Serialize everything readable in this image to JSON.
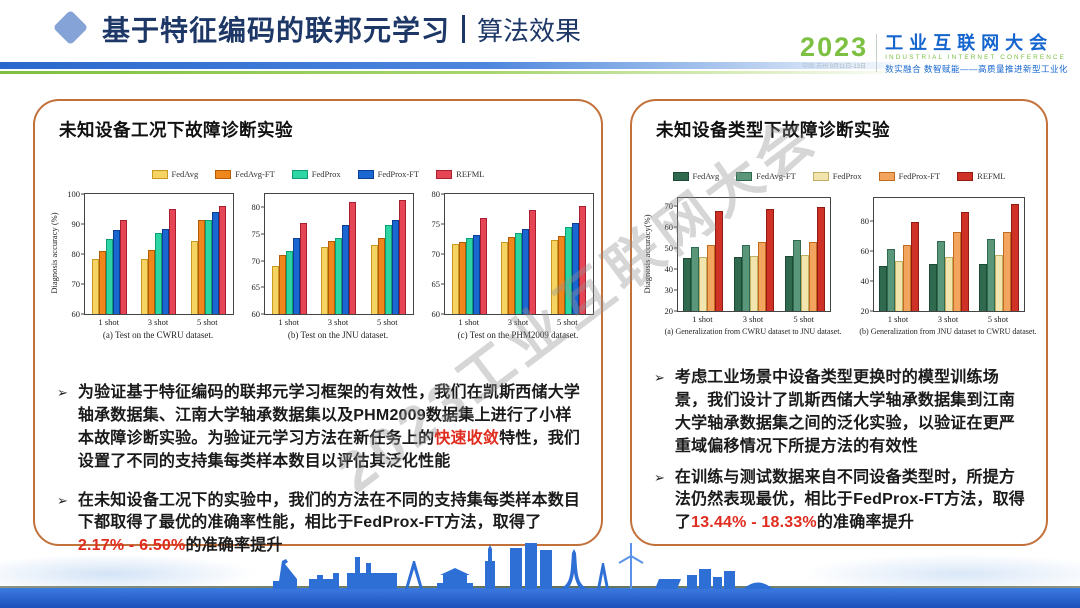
{
  "header": {
    "title": "基于特征编码的联邦元学习",
    "subtitle": "算法效果",
    "logo": {
      "year": "2023",
      "event_info": "中国·苏州 9月11日-13日",
      "name_cn": "工业互联网大会",
      "name_en": "INDUSTRIAL INTERNET CONFERENCE",
      "slogan": "数实融合 数智赋能——高质量推进新型工业化"
    }
  },
  "watermark": "2023工业互联网大会",
  "colors": {
    "title_navy": "#1d3767",
    "panel_border": "#c2713a",
    "highlight_red": "#e02c1e",
    "divider_blue": "#2a68cc",
    "divider_green": "#7fbf3f",
    "skyline_blue": "#2e6fd6"
  },
  "panels": {
    "left": {
      "title": "未知设备工况下故障诊断实验",
      "legend": [
        {
          "label": "FedAvg",
          "fill": "#f6d464",
          "border": "#c79a1d"
        },
        {
          "label": "FedAvg-FT",
          "fill": "#f0871d",
          "border": "#b35c08"
        },
        {
          "label": "FedProx",
          "fill": "#2cd5a4",
          "border": "#0f9e74"
        },
        {
          "label": "FedProx-FT",
          "fill": "#1a67d2",
          "border": "#0c3e93"
        },
        {
          "label": "REFML",
          "fill": "#e64556",
          "border": "#a81f30"
        }
      ],
      "bullets": [
        {
          "segments": [
            {
              "t": "为验证基于特征编码的联邦元学习框架的有效性，我们在凯斯西储大学轴承数据集、江南大学轴承数据集以及PHM2009数据集上进行了小样本故障诊断实验。为验证元学习方法在新任务上的",
              "red": false
            },
            {
              "t": "快速收敛",
              "red": true
            },
            {
              "t": "特性，我们设置了不同的支持集每类样本数目以评估其泛化性能",
              "red": false
            }
          ]
        },
        {
          "segments": [
            {
              "t": "在未知设备工况下的实验中，我们的方法在不同的支持集每类样本数目下都取得了最优的准确率性能，相比于FedProx-FT方法，取得了 ",
              "red": false
            },
            {
              "t": "2.17% - 6.50%",
              "red": true
            },
            {
              "t": "的准确率提升",
              "red": false
            }
          ]
        }
      ]
    },
    "right": {
      "title": "未知设备类型下故障诊断实验",
      "legend": [
        {
          "label": "FedAvg",
          "fill": "#2f6a4f",
          "border": "#1c4a34"
        },
        {
          "label": "FedAvg-FT",
          "fill": "#59967a",
          "border": "#2f6a4f"
        },
        {
          "label": "FedProx",
          "fill": "#f1e5ad",
          "border": "#bfae66"
        },
        {
          "label": "FedProx-FT",
          "fill": "#f3a45f",
          "border": "#c26a1d"
        },
        {
          "label": "REFML",
          "fill": "#cf3126",
          "border": "#8f1b13"
        }
      ],
      "bullets": [
        {
          "segments": [
            {
              "t": "考虑工业场景中设备类型更换时的模型训练场景，我们设计了凯斯西储大学轴承数据集到江南大学轴承数据集之间的泛化实验，以验证在更严重域偏移情况下所提方法的有效性",
              "red": false
            }
          ]
        },
        {
          "segments": [
            {
              "t": "在训练与测试数据来自不同设备类型时，所提方法仍然表现最优，相比于FedProx-FT方法，取得了",
              "red": false
            },
            {
              "t": "13.44% - 18.33%",
              "red": true
            },
            {
              "t": "的准确率提升",
              "red": false
            }
          ]
        }
      ]
    }
  },
  "chart_data": [
    {
      "id": "cwru",
      "type": "bar",
      "panel": "left",
      "title": "(a) Test on the CWRU dataset.",
      "ylabel": "Diagnosis accuracy (%)",
      "ylim": [
        60,
        100
      ],
      "yticks": [
        60,
        70,
        80,
        90,
        100
      ],
      "categories": [
        "1 shot",
        "3 shot",
        "5 shot"
      ],
      "series": [
        {
          "name": "FedAvg",
          "values": [
            78.5,
            78.5,
            84.5
          ]
        },
        {
          "name": "FedAvg-FT",
          "values": [
            81.0,
            81.5,
            91.5
          ]
        },
        {
          "name": "FedProx",
          "values": [
            85.0,
            87.0,
            91.5
          ]
        },
        {
          "name": "FedProx-FT",
          "values": [
            88.0,
            88.5,
            94.0
          ]
        },
        {
          "name": "REFML",
          "values": [
            91.5,
            95.0,
            96.0
          ]
        }
      ]
    },
    {
      "id": "jnu",
      "type": "bar",
      "panel": "left",
      "title": "(b) Test on the JNU dataset.",
      "ylabel": "",
      "ylim": [
        60,
        82.5
      ],
      "yticks": [
        60,
        65,
        70,
        75,
        80
      ],
      "categories": [
        "1 shot",
        "3 shot",
        "5 shot"
      ],
      "series": [
        {
          "name": "FedAvg",
          "values": [
            69.0,
            72.5,
            73.0
          ]
        },
        {
          "name": "FedAvg-FT",
          "values": [
            71.0,
            73.7,
            74.2
          ]
        },
        {
          "name": "FedProx",
          "values": [
            71.8,
            74.2,
            76.7
          ]
        },
        {
          "name": "FedProx-FT",
          "values": [
            74.2,
            76.7,
            77.7
          ]
        },
        {
          "name": "REFML",
          "values": [
            77.0,
            81.0,
            81.3
          ]
        }
      ]
    },
    {
      "id": "phm",
      "type": "bar",
      "panel": "left",
      "title": "(c) Test on the PHM2009 dataset.",
      "ylabel": "",
      "ylim": [
        60,
        80
      ],
      "yticks": [
        60,
        65,
        70,
        75,
        80
      ],
      "categories": [
        "1 shot",
        "3 shot",
        "5 shot"
      ],
      "series": [
        {
          "name": "FedAvg",
          "values": [
            71.7,
            72.0,
            72.3
          ]
        },
        {
          "name": "FedAvg-FT",
          "values": [
            72.0,
            72.9,
            73.0
          ]
        },
        {
          "name": "FedProx",
          "values": [
            72.6,
            73.5,
            74.5
          ]
        },
        {
          "name": "FedProx-FT",
          "values": [
            73.2,
            74.2,
            75.2
          ]
        },
        {
          "name": "REFML",
          "values": [
            76.0,
            77.4,
            78.0
          ]
        }
      ]
    },
    {
      "id": "gen-cwru-jnu",
      "type": "bar",
      "panel": "right",
      "title": "(a) Generalization from CWRU dataset to JNU dataset.",
      "ylabel": "Diagnosis accuracy(%)",
      "ylim": [
        20,
        74
      ],
      "yticks": [
        20,
        30,
        40,
        50,
        60,
        70
      ],
      "categories": [
        "1 shot",
        "3 shot",
        "5 shot"
      ],
      "series": [
        {
          "name": "FedAvg",
          "values": [
            45.5,
            46.0,
            46.5
          ]
        },
        {
          "name": "FedAvg-FT",
          "values": [
            50.5,
            51.5,
            54.0
          ]
        },
        {
          "name": "FedProx",
          "values": [
            46.0,
            46.5,
            47.0
          ]
        },
        {
          "name": "FedProx-FT",
          "values": [
            51.5,
            53.0,
            53.0
          ]
        },
        {
          "name": "REFML",
          "values": [
            68.0,
            69.0,
            69.5
          ]
        }
      ]
    },
    {
      "id": "gen-jnu-cwru",
      "type": "bar",
      "panel": "right",
      "title": "(b) Generalization from JNU dataset to CWRU dataset.",
      "ylabel": "",
      "ylim": [
        20,
        95
      ],
      "yticks": [
        20,
        40,
        60,
        80
      ],
      "categories": [
        "1 shot",
        "3 shot",
        "5 shot"
      ],
      "series": [
        {
          "name": "FedAvg",
          "values": [
            50.0,
            51.0,
            51.0
          ]
        },
        {
          "name": "FedAvg-FT",
          "values": [
            61.0,
            66.5,
            68.0
          ]
        },
        {
          "name": "FedProx",
          "values": [
            53.0,
            56.0,
            57.0
          ]
        },
        {
          "name": "FedProx-FT",
          "values": [
            64.0,
            72.5,
            72.5
          ]
        },
        {
          "name": "REFML",
          "values": [
            79.0,
            86.0,
            91.0
          ]
        }
      ]
    }
  ]
}
